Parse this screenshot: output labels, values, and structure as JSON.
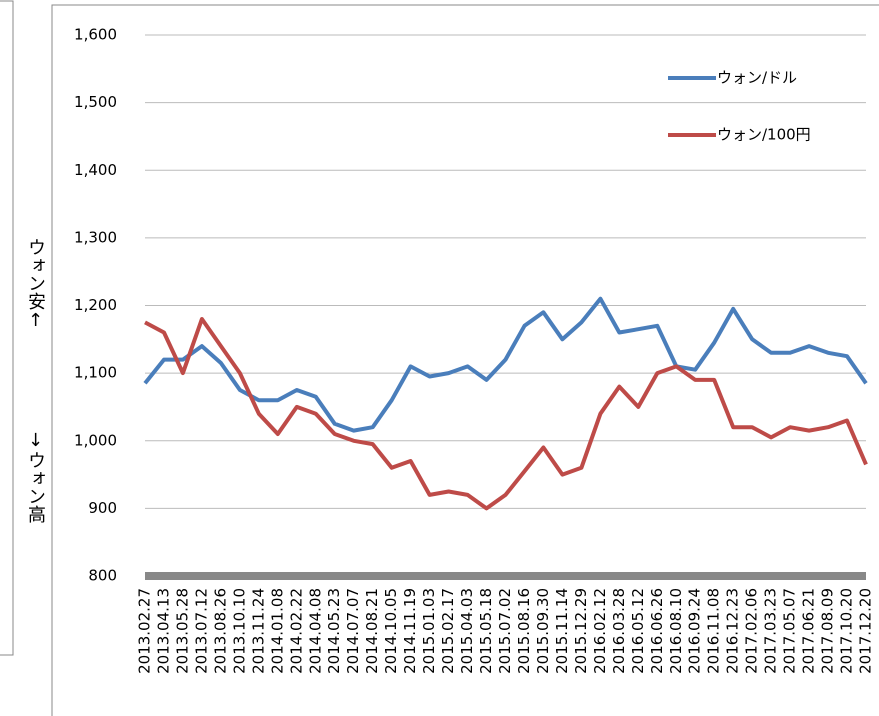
{
  "chart_data": {
    "type": "line",
    "ylabel": [
      "ウォン安↑",
      "↓ウォン高"
    ],
    "categories": [
      "2013.02.27",
      "2013.04.13",
      "2013.05.28",
      "2013.07.12",
      "2013.08.26",
      "2013.10.10",
      "2013.11.24",
      "2014.01.08",
      "2014.02.22",
      "2014.04.08",
      "2014.05.23",
      "2014.07.07",
      "2014.08.21",
      "2014.10.05",
      "2014.11.19",
      "2015.01.03",
      "2015.02.17",
      "2015.04.03",
      "2015.05.18",
      "2015.07.02",
      "2015.08.16",
      "2015.09.30",
      "2015.11.14",
      "2015.12.29",
      "2016.02.12",
      "2016.03.28",
      "2016.05.12",
      "2016.06.26",
      "2016.08.10",
      "2016.09.24",
      "2016.11.08",
      "2016.12.23",
      "2017.02.06",
      "2017.03.23",
      "2017.05.07",
      "2017.06.21",
      "2017.08.09",
      "2017.10.20",
      "2017.12.20"
    ],
    "series": [
      {
        "name": "ウォン/ドル",
        "color": "#4a7ebb",
        "values": [
          1085,
          1120,
          1120,
          1140,
          1115,
          1075,
          1060,
          1060,
          1075,
          1065,
          1025,
          1015,
          1020,
          1060,
          1110,
          1095,
          1100,
          1110,
          1090,
          1120,
          1170,
          1190,
          1150,
          1175,
          1210,
          1160,
          1165,
          1170,
          1110,
          1105,
          1145,
          1195,
          1150,
          1130,
          1130,
          1140,
          1130,
          1125,
          1085
        ]
      },
      {
        "name": "ウォン/100円",
        "color": "#be4b48",
        "values": [
          1175,
          1160,
          1100,
          1180,
          1140,
          1100,
          1040,
          1010,
          1050,
          1040,
          1010,
          1000,
          995,
          960,
          970,
          920,
          925,
          920,
          900,
          920,
          955,
          990,
          950,
          960,
          1040,
          1080,
          1050,
          1100,
          1110,
          1090,
          1090,
          1020,
          1020,
          1005,
          1020,
          1015,
          1020,
          1030,
          965
        ]
      }
    ],
    "ylim": [
      800,
      1600
    ],
    "yticks": [
      800,
      900,
      {
        "value": 1000,
        "label": "1,000"
      },
      {
        "value": 1100,
        "label": "1,100"
      },
      {
        "value": 1200,
        "label": "1,200"
      },
      {
        "value": 1300,
        "label": "1,300"
      },
      {
        "value": 1400,
        "label": "1,400"
      },
      {
        "value": 1500,
        "label": "1,500"
      },
      {
        "value": 1600,
        "label": "1,600"
      }
    ],
    "grid": true,
    "legend": "top-right"
  }
}
